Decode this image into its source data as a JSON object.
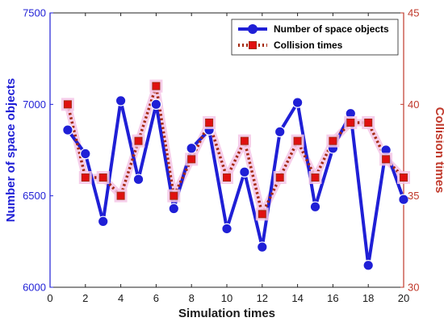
{
  "chart_data": {
    "type": "line",
    "x": [
      1,
      2,
      3,
      4,
      5,
      6,
      7,
      8,
      9,
      10,
      11,
      12,
      13,
      14,
      15,
      16,
      17,
      18,
      19,
      20
    ],
    "xlabel": "Simulation times",
    "xlim": [
      0,
      20
    ],
    "xticks": [
      "0",
      "2",
      "4",
      "6",
      "8",
      "10",
      "12",
      "14",
      "16",
      "18",
      "20"
    ],
    "grid": false,
    "legend_position": "top-right",
    "series": [
      {
        "name": "Number of space objects",
        "axis": "left",
        "color": "#1f1fd6",
        "style": "solid line with circle markers",
        "values": [
          6860,
          6730,
          6360,
          7020,
          6590,
          7000,
          6430,
          6760,
          6860,
          6320,
          6630,
          6220,
          6850,
          7010,
          6440,
          6760,
          6950,
          6120,
          6750,
          6480
        ]
      },
      {
        "name": "Collision times",
        "axis": "right",
        "color": "#a52a10",
        "marker_color": "#e01010",
        "style": "dotted line with square markers",
        "values": [
          40,
          36,
          36,
          35,
          38,
          41,
          35,
          37,
          39,
          36,
          38,
          34,
          36,
          38,
          36,
          38,
          39,
          39,
          37,
          36
        ]
      }
    ],
    "left_axis": {
      "label": "Number of space objects",
      "range": [
        6000,
        7500
      ],
      "ticks": [
        "6000",
        "6500",
        "7000",
        "7500"
      ],
      "color": "#1f1fd6"
    },
    "right_axis": {
      "label": "Collision times",
      "range": [
        30,
        45
      ],
      "ticks": [
        "30",
        "35",
        "40",
        "45"
      ],
      "color": "#c0392b"
    }
  }
}
